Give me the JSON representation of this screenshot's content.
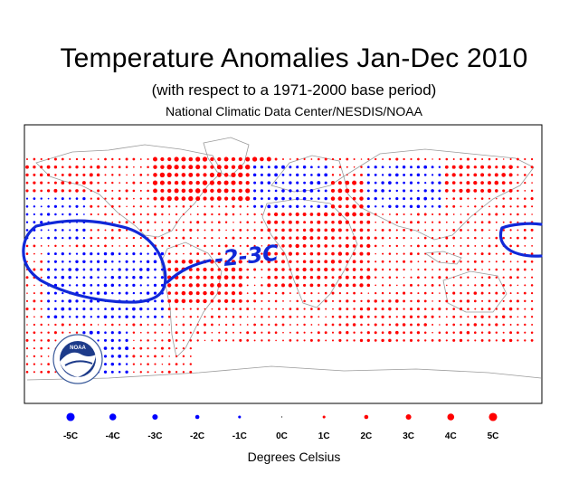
{
  "header": {
    "title": "Temperature Anomalies Jan-Dec 2010",
    "subtitle": "(with respect to a 1971-2000 base period)",
    "source": "National Climatic Data Center/NESDIS/NOAA"
  },
  "logo": {
    "text": "NOAA"
  },
  "annotation": {
    "text": "-2-3C"
  },
  "colors": {
    "warm": "#ff0000",
    "cold": "#0000ff",
    "annotation": "#1028d8",
    "land": "#888888",
    "frame": "#000000"
  },
  "chart_data": {
    "type": "scatter",
    "title": "Temperature Anomalies Jan-Dec 2010",
    "subtitle": "(with respect to a 1971-2000 base period)",
    "legend": {
      "values": [
        -5,
        -4,
        -3,
        -2,
        -1,
        0,
        1,
        2,
        3,
        4,
        5
      ],
      "labels": [
        "-5C",
        "-4C",
        "-3C",
        "-2C",
        "-1C",
        "0C",
        "1C",
        "2C",
        "3C",
        "4C",
        "5C"
      ],
      "unit_label": "Degrees Celsius"
    },
    "grid": {
      "lon_min": -180,
      "lon_max": 180,
      "lon_step": 5,
      "lat_min": -60,
      "lat_max": 80,
      "lat_step": 5
    },
    "patches": [
      {
        "lon": [
          -90,
          -10
        ],
        "lat": [
          55,
          80
        ],
        "v": 3.2
      },
      {
        "lon": [
          -180,
          -130
        ],
        "lat": [
          60,
          75
        ],
        "v": 1.8
      },
      {
        "lon": [
          -10,
          60
        ],
        "lat": [
          0,
          45
        ],
        "v": 2.2
      },
      {
        "lon": [
          20,
          55
        ],
        "lat": [
          45,
          65
        ],
        "v": 2.8
      },
      {
        "lon": [
          115,
          160
        ],
        "lat": [
          60,
          78
        ],
        "v": 2.4
      },
      {
        "lon": [
          -20,
          30
        ],
        "lat": [
          50,
          75
        ],
        "v": -1.8
      },
      {
        "lon": [
          60,
          110
        ],
        "lat": [
          50,
          75
        ],
        "v": -1.6
      },
      {
        "lon": [
          -165,
          -85
        ],
        "lat": [
          -20,
          20
        ],
        "v": -1.6
      },
      {
        "lon": [
          -180,
          -140
        ],
        "lat": [
          30,
          55
        ],
        "v": -1.2
      },
      {
        "lon": [
          -140,
          -110
        ],
        "lat": [
          -60,
          -30
        ],
        "v": -1.8
      },
      {
        "lon": [
          -80,
          -30
        ],
        "lat": [
          -10,
          15
        ],
        "v": 2.6
      },
      {
        "lon": [
          40,
          100
        ],
        "lat": [
          -50,
          -10
        ],
        "v": 1.6
      },
      {
        "lon": [
          120,
          160
        ],
        "lat": [
          -40,
          -5
        ],
        "v": 1.4
      }
    ],
    "base_anomaly": 1.0,
    "missing_regions": [
      {
        "lon": [
          -180,
          180
        ],
        "lat": [
          -90,
          -60
        ]
      },
      {
        "lon": [
          -60,
          180
        ],
        "lat": [
          -60,
          -40
        ]
      }
    ]
  }
}
